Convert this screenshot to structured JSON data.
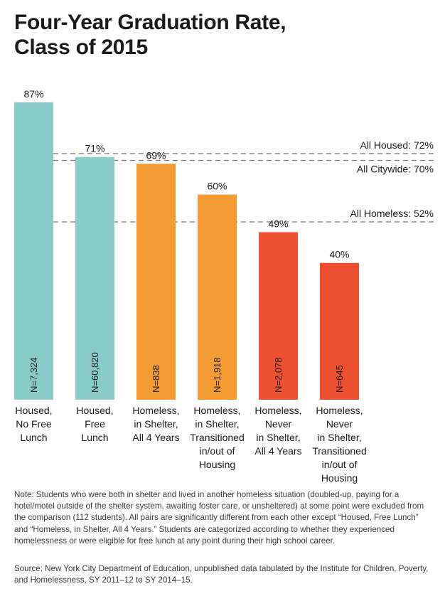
{
  "title_lines": [
    "Four-Year Graduation Rate,",
    "Class of 2015"
  ],
  "note": "Note: Students who were both in shelter and lived in another homeless situation (doubled-up, paying for a hotel/motel outside of the shelter system, awaiting foster care, or unsheltered) at some point were excluded from the comparison (112 students). All pairs are significantly different from each other except “Housed, Free Lunch” and “Homeless, in Shelter, All 4 Years.” Students are categorized according to whether they experienced homelessness or were eligible for free lunch at any point during their high school career.",
  "source": "Source: New York City Department of Education, unpublished data tabulated by the Institute for Children, Poverty, and Homelessness, SY 2011–12 to SY 2014–15.",
  "chart_data": {
    "type": "bar",
    "title": "Four-Year Graduation Rate, Class of 2015",
    "ylim": [
      0,
      100
    ],
    "grid": false,
    "categories": [
      [
        "Housed,",
        "No Free",
        "Lunch"
      ],
      [
        "Housed,",
        "Free",
        "Lunch"
      ],
      [
        "Homeless,",
        "in Shelter,",
        "All 4 Years"
      ],
      [
        "Homeless,",
        "in Shelter,",
        "Transitioned",
        "in/out of",
        "Housing"
      ],
      [
        "Homeless,",
        "Never",
        "in Shelter,",
        "All 4 Years"
      ],
      [
        "Homeless,",
        "Never",
        "in Shelter,",
        "Transitioned",
        "in/out of",
        "Housing"
      ]
    ],
    "values": [
      87,
      71,
      69,
      60,
      49,
      40
    ],
    "value_labels": [
      "87%",
      "71%",
      "69%",
      "60%",
      "49%",
      "40%"
    ],
    "n_labels": [
      "N=7,324",
      "N=60,820",
      "N=838",
      "N=1,918",
      "N=2,078",
      "N=645"
    ],
    "colors": [
      "#88cbc8",
      "#88cbc8",
      "#f49c33",
      "#f49c33",
      "#ec5030",
      "#ec5030"
    ],
    "reference_lines": [
      {
        "label": "All Housed: 72%",
        "value": 72
      },
      {
        "label": "All Citywide: 70%",
        "value": 70
      },
      {
        "label": "All Homeless: 52%",
        "value": 52
      }
    ]
  }
}
